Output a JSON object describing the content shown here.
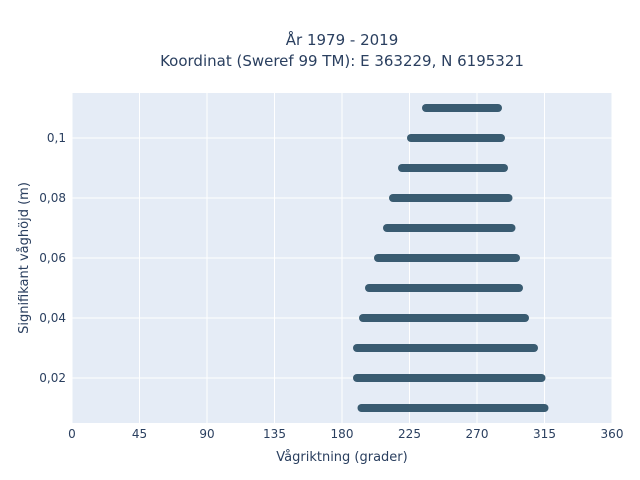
{
  "chart_data": {
    "type": "scatter",
    "title_line1": "År 1979 - 2019",
    "title_line2": "Koordinat (Sweref 99 TM): E 363229, N 6195321",
    "xlabel": "Vågriktning (grader)",
    "ylabel": "Signifikant våghöjd (m)",
    "xlim": [
      0,
      360
    ],
    "ylim": [
      0.005,
      0.115
    ],
    "x_ticks": [
      0,
      45,
      90,
      135,
      180,
      225,
      270,
      315,
      360
    ],
    "y_ticks": [
      0.02,
      0.04,
      0.06,
      0.08,
      0.1
    ],
    "y_tick_labels": [
      "0,02",
      "0,04",
      "0,06",
      "0,08",
      "0,1"
    ],
    "grid": true,
    "background": "#e5ecf6",
    "marker_color": "#2f5369",
    "bands": [
      {
        "height": 0.01,
        "dir_min": 193,
        "dir_max": 315
      },
      {
        "height": 0.02,
        "dir_min": 190,
        "dir_max": 313
      },
      {
        "height": 0.03,
        "dir_min": 190,
        "dir_max": 308
      },
      {
        "height": 0.04,
        "dir_min": 194,
        "dir_max": 302
      },
      {
        "height": 0.05,
        "dir_min": 198,
        "dir_max": 298
      },
      {
        "height": 0.06,
        "dir_min": 204,
        "dir_max": 296
      },
      {
        "height": 0.07,
        "dir_min": 210,
        "dir_max": 293
      },
      {
        "height": 0.08,
        "dir_min": 214,
        "dir_max": 291
      },
      {
        "height": 0.09,
        "dir_min": 220,
        "dir_max": 288
      },
      {
        "height": 0.1,
        "dir_min": 226,
        "dir_max": 286
      },
      {
        "height": 0.11,
        "dir_min": 236,
        "dir_max": 284
      }
    ]
  }
}
